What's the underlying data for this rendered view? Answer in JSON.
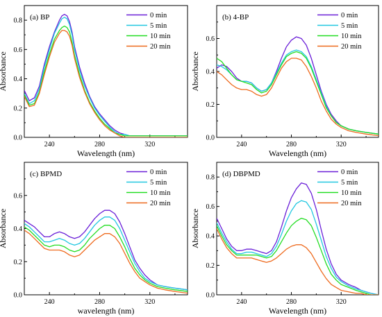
{
  "colors": {
    "series": [
      "#6a1fd8",
      "#21c7e0",
      "#22dd22",
      "#ee6a1e"
    ],
    "axis": "#000000",
    "background": "#ffffff"
  },
  "chart_data": [
    {
      "type": "line",
      "panel_label": "(a) BP",
      "xlabel": "Wavelength (nm)",
      "ylabel": "Absorbance",
      "xlim": [
        220,
        350
      ],
      "ylim": [
        0,
        0.9
      ],
      "xticks": [
        "240",
        "280",
        "320"
      ],
      "yticks": [
        "0.0",
        "0.2",
        "0.4",
        "0.6",
        "0.8"
      ],
      "grid": false,
      "legend_position": "top-right",
      "x": [
        220,
        224,
        228,
        232,
        236,
        240,
        244,
        248,
        250,
        252,
        254,
        256,
        258,
        260,
        264,
        268,
        272,
        276,
        280,
        284,
        288,
        292,
        296,
        300,
        304,
        310,
        320,
        330,
        340,
        350
      ],
      "series": [
        {
          "name": "0 min",
          "values": [
            0.32,
            0.25,
            0.27,
            0.35,
            0.5,
            0.62,
            0.72,
            0.8,
            0.83,
            0.84,
            0.83,
            0.79,
            0.72,
            0.62,
            0.48,
            0.37,
            0.28,
            0.21,
            0.16,
            0.12,
            0.08,
            0.05,
            0.03,
            0.02,
            0.01,
            0.01,
            0.01,
            0.01,
            0.01,
            0.01
          ]
        },
        {
          "name": "5 min",
          "values": [
            0.3,
            0.23,
            0.25,
            0.33,
            0.48,
            0.6,
            0.71,
            0.78,
            0.81,
            0.82,
            0.81,
            0.77,
            0.7,
            0.6,
            0.46,
            0.35,
            0.27,
            0.2,
            0.15,
            0.11,
            0.07,
            0.04,
            0.02,
            0.02,
            0.01,
            0.01,
            0.01,
            0.01,
            0.01,
            0.01
          ]
        },
        {
          "name": "10 min",
          "values": [
            0.29,
            0.22,
            0.23,
            0.31,
            0.45,
            0.57,
            0.67,
            0.73,
            0.75,
            0.76,
            0.75,
            0.72,
            0.65,
            0.56,
            0.43,
            0.32,
            0.24,
            0.18,
            0.13,
            0.09,
            0.06,
            0.03,
            0.02,
            0.01,
            0.01,
            0.01,
            0.01,
            0.01,
            0.01,
            0.01
          ]
        },
        {
          "name": "20 min",
          "values": [
            0.28,
            0.21,
            0.22,
            0.3,
            0.43,
            0.55,
            0.65,
            0.71,
            0.73,
            0.73,
            0.72,
            0.69,
            0.63,
            0.54,
            0.41,
            0.31,
            0.23,
            0.17,
            0.12,
            0.08,
            0.05,
            0.03,
            0.01,
            0.0,
            0.0,
            0.0,
            0.0,
            0.0,
            0.0,
            0.0
          ]
        }
      ]
    },
    {
      "type": "line",
      "panel_label": "(b) 4-BP",
      "xlabel": "Wavelength (nm)",
      "ylabel": "Absorbance",
      "xlim": [
        220,
        350
      ],
      "ylim": [
        0,
        0.8
      ],
      "xticks": [
        "240",
        "280",
        "320"
      ],
      "yticks": [
        "0.0",
        "0.2",
        "0.4",
        "0.6"
      ],
      "grid": false,
      "legend_position": "top-right",
      "x": [
        220,
        224,
        228,
        232,
        236,
        240,
        244,
        248,
        252,
        256,
        260,
        264,
        268,
        272,
        276,
        280,
        284,
        288,
        292,
        296,
        300,
        304,
        308,
        312,
        316,
        320,
        326,
        332,
        340,
        350
      ],
      "series": [
        {
          "name": "0 min",
          "values": [
            0.42,
            0.44,
            0.43,
            0.4,
            0.36,
            0.34,
            0.34,
            0.33,
            0.3,
            0.28,
            0.29,
            0.33,
            0.4,
            0.48,
            0.55,
            0.59,
            0.61,
            0.6,
            0.56,
            0.48,
            0.38,
            0.28,
            0.2,
            0.14,
            0.1,
            0.07,
            0.05,
            0.04,
            0.03,
            0.02
          ]
        },
        {
          "name": "5 min",
          "values": [
            0.44,
            0.43,
            0.41,
            0.38,
            0.35,
            0.34,
            0.34,
            0.33,
            0.3,
            0.28,
            0.29,
            0.33,
            0.39,
            0.45,
            0.5,
            0.52,
            0.53,
            0.52,
            0.49,
            0.43,
            0.35,
            0.27,
            0.19,
            0.13,
            0.09,
            0.07,
            0.05,
            0.04,
            0.03,
            0.02
          ]
        },
        {
          "name": "10 min",
          "values": [
            0.48,
            0.46,
            0.42,
            0.38,
            0.35,
            0.34,
            0.33,
            0.32,
            0.29,
            0.27,
            0.28,
            0.32,
            0.38,
            0.44,
            0.49,
            0.51,
            0.52,
            0.51,
            0.48,
            0.42,
            0.34,
            0.26,
            0.18,
            0.13,
            0.09,
            0.07,
            0.05,
            0.04,
            0.03,
            0.02
          ]
        },
        {
          "name": "20 min",
          "values": [
            0.4,
            0.38,
            0.35,
            0.32,
            0.3,
            0.29,
            0.29,
            0.28,
            0.26,
            0.25,
            0.26,
            0.3,
            0.36,
            0.42,
            0.46,
            0.48,
            0.48,
            0.47,
            0.43,
            0.37,
            0.3,
            0.22,
            0.16,
            0.11,
            0.08,
            0.06,
            0.04,
            0.03,
            0.02,
            0.01
          ]
        }
      ]
    },
    {
      "type": "line",
      "panel_label": "(c) BPMD",
      "xlabel": "wavelength (nm)",
      "ylabel": "Absorbance",
      "xlim": [
        220,
        350
      ],
      "ylim": [
        0,
        0.8
      ],
      "xticks": [
        "240",
        "280",
        "320"
      ],
      "yticks": [
        "0.0",
        "0.2",
        "0.4",
        "0.6"
      ],
      "grid": false,
      "legend_position": "top-right",
      "x": [
        220,
        224,
        228,
        232,
        236,
        240,
        244,
        248,
        252,
        256,
        260,
        264,
        268,
        272,
        276,
        280,
        284,
        288,
        292,
        296,
        300,
        304,
        308,
        312,
        316,
        320,
        326,
        332,
        340,
        350
      ],
      "series": [
        {
          "name": "0 min",
          "values": [
            0.45,
            0.43,
            0.41,
            0.38,
            0.35,
            0.35,
            0.37,
            0.38,
            0.37,
            0.35,
            0.34,
            0.35,
            0.38,
            0.42,
            0.46,
            0.49,
            0.51,
            0.51,
            0.49,
            0.44,
            0.37,
            0.29,
            0.21,
            0.16,
            0.12,
            0.09,
            0.06,
            0.05,
            0.04,
            0.03
          ]
        },
        {
          "name": "5 min",
          "values": [
            0.43,
            0.41,
            0.38,
            0.35,
            0.32,
            0.32,
            0.33,
            0.34,
            0.33,
            0.31,
            0.3,
            0.31,
            0.34,
            0.38,
            0.42,
            0.45,
            0.47,
            0.47,
            0.45,
            0.4,
            0.33,
            0.26,
            0.19,
            0.14,
            0.1,
            0.08,
            0.06,
            0.05,
            0.04,
            0.03
          ]
        },
        {
          "name": "10 min",
          "values": [
            0.41,
            0.39,
            0.36,
            0.33,
            0.3,
            0.29,
            0.3,
            0.3,
            0.29,
            0.27,
            0.26,
            0.27,
            0.3,
            0.34,
            0.37,
            0.4,
            0.42,
            0.42,
            0.4,
            0.35,
            0.29,
            0.22,
            0.16,
            0.12,
            0.09,
            0.07,
            0.05,
            0.04,
            0.03,
            0.02
          ]
        },
        {
          "name": "20 min",
          "values": [
            0.39,
            0.37,
            0.34,
            0.31,
            0.28,
            0.27,
            0.27,
            0.27,
            0.26,
            0.24,
            0.23,
            0.24,
            0.27,
            0.3,
            0.33,
            0.35,
            0.37,
            0.37,
            0.35,
            0.31,
            0.25,
            0.19,
            0.14,
            0.1,
            0.08,
            0.06,
            0.04,
            0.03,
            0.02,
            0.01
          ]
        }
      ]
    },
    {
      "type": "line",
      "panel_label": "(d) DBPMD",
      "xlabel": "Wavelength (nm)",
      "ylabel": "Absorbance",
      "xlim": [
        220,
        350
      ],
      "ylim": [
        0,
        0.9
      ],
      "xticks": [
        "240",
        "280",
        "320"
      ],
      "yticks": [
        "0.0",
        "0.2",
        "0.4",
        "0.6",
        "0.8"
      ],
      "grid": false,
      "legend_position": "top-right",
      "x": [
        220,
        224,
        228,
        232,
        236,
        240,
        244,
        248,
        252,
        256,
        260,
        264,
        268,
        272,
        276,
        280,
        284,
        288,
        292,
        296,
        300,
        304,
        308,
        312,
        316,
        320,
        326,
        332,
        336,
        340,
        344,
        350
      ],
      "series": [
        {
          "name": "0 min",
          "values": [
            0.52,
            0.45,
            0.38,
            0.33,
            0.3,
            0.3,
            0.31,
            0.31,
            0.3,
            0.29,
            0.28,
            0.3,
            0.36,
            0.46,
            0.57,
            0.66,
            0.72,
            0.76,
            0.75,
            0.69,
            0.58,
            0.44,
            0.31,
            0.21,
            0.14,
            0.1,
            0.07,
            0.05,
            0.03,
            0.02,
            0.01,
            0.0
          ]
        },
        {
          "name": "5 min",
          "values": [
            0.49,
            0.42,
            0.36,
            0.31,
            0.28,
            0.28,
            0.29,
            0.29,
            0.28,
            0.27,
            0.26,
            0.28,
            0.33,
            0.41,
            0.5,
            0.57,
            0.62,
            0.64,
            0.63,
            0.58,
            0.48,
            0.37,
            0.26,
            0.18,
            0.12,
            0.09,
            0.06,
            0.04,
            0.03,
            0.02,
            0.01,
            0.0
          ]
        },
        {
          "name": "10 min",
          "values": [
            0.47,
            0.4,
            0.34,
            0.3,
            0.27,
            0.27,
            0.27,
            0.27,
            0.27,
            0.26,
            0.25,
            0.26,
            0.3,
            0.36,
            0.42,
            0.47,
            0.5,
            0.52,
            0.51,
            0.47,
            0.39,
            0.3,
            0.21,
            0.14,
            0.1,
            0.07,
            0.05,
            0.03,
            0.02,
            0.01,
            0.0,
            0.0
          ]
        },
        {
          "name": "20 min",
          "values": [
            0.45,
            0.38,
            0.32,
            0.28,
            0.25,
            0.25,
            0.25,
            0.25,
            0.24,
            0.23,
            0.22,
            0.23,
            0.25,
            0.28,
            0.31,
            0.33,
            0.34,
            0.34,
            0.32,
            0.28,
            0.22,
            0.16,
            0.11,
            0.07,
            0.05,
            0.03,
            0.02,
            0.01,
            0.01,
            0.0,
            0.0,
            0.0
          ]
        }
      ]
    }
  ]
}
